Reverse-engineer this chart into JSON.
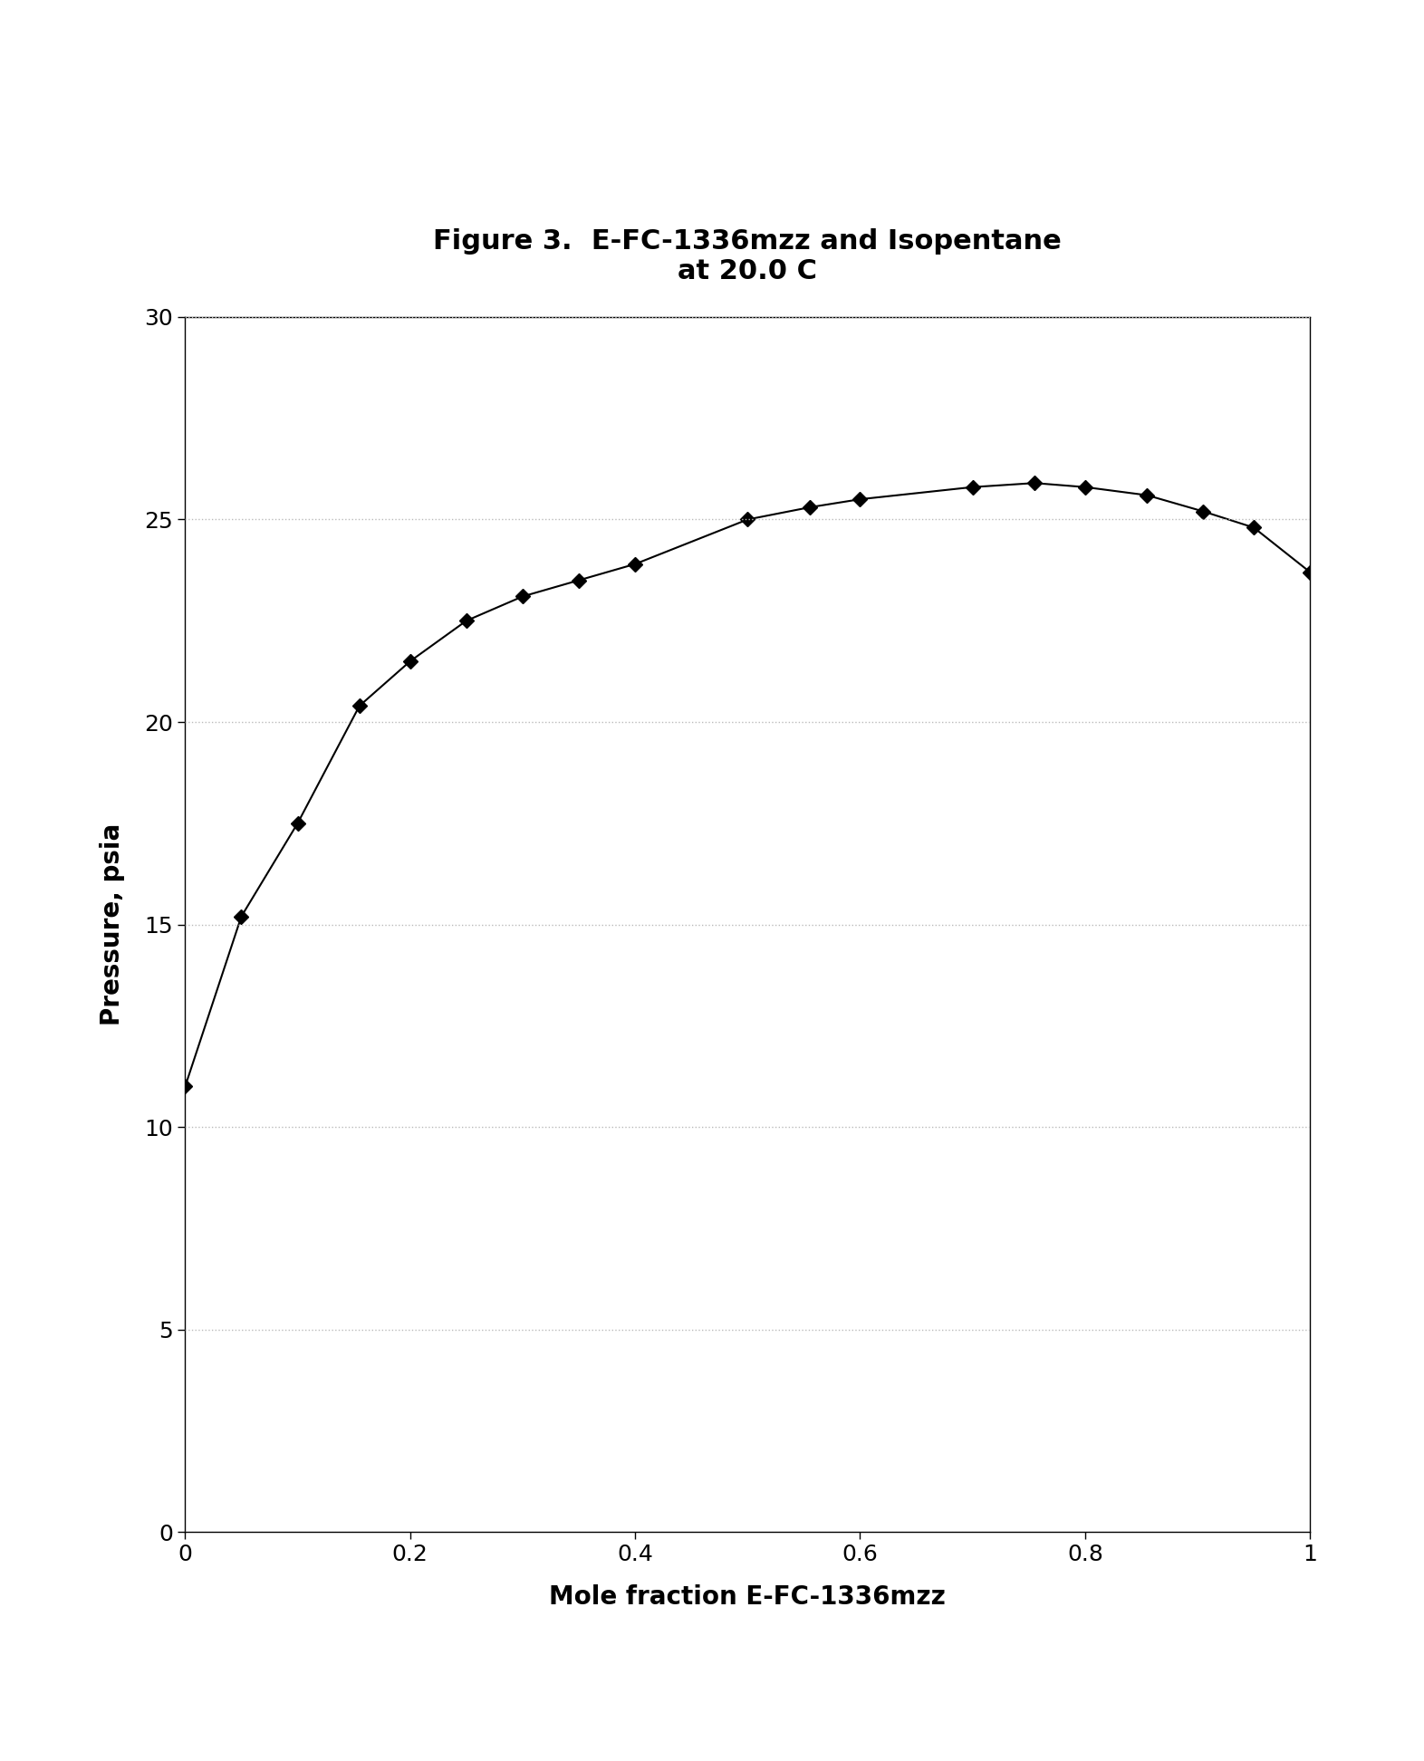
{
  "title_line1": "Figure 3.  E-FC-1336mzz and Isopentane",
  "title_line2": "at 20.0 C",
  "xlabel": "Mole fraction E-FC-1336mzz",
  "ylabel": "Pressure, psia",
  "xlim": [
    0,
    1
  ],
  "ylim": [
    0,
    30
  ],
  "xticks": [
    0,
    0.2,
    0.4,
    0.6,
    0.8,
    1.0
  ],
  "yticks": [
    0,
    5,
    10,
    15,
    20,
    25,
    30
  ],
  "x_data": [
    0.0,
    0.05,
    0.1,
    0.155,
    0.2,
    0.25,
    0.3,
    0.35,
    0.4,
    0.5,
    0.555,
    0.6,
    0.7,
    0.755,
    0.8,
    0.855,
    0.905,
    0.95,
    1.0
  ],
  "y_data": [
    11.0,
    15.2,
    17.5,
    20.4,
    21.5,
    22.5,
    23.1,
    23.5,
    23.9,
    25.0,
    25.3,
    25.5,
    25.8,
    25.9,
    25.8,
    25.6,
    25.2,
    24.8,
    23.7
  ],
  "line_color": "#000000",
  "marker_color": "#000000",
  "marker_style": "D",
  "marker_size": 8,
  "line_width": 1.5,
  "title_fontsize": 22,
  "label_fontsize": 20,
  "tick_fontsize": 18,
  "background_color": "#ffffff",
  "grid_color": "#bbbbbb",
  "grid_style": "dotted"
}
